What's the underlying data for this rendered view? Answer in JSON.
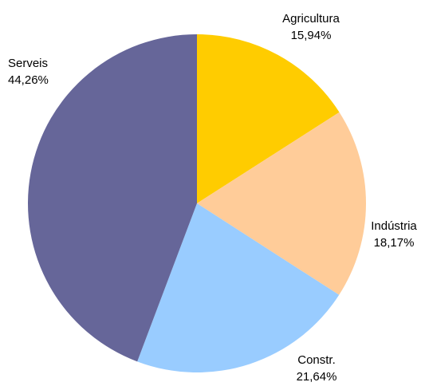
{
  "chart_data": {
    "type": "pie",
    "title": "",
    "start": "top, clockwise",
    "slices": [
      {
        "label": "Agricultura",
        "value": 15.94,
        "value_label": "15,94%",
        "color": "#FFCC00"
      },
      {
        "label": "Indústria",
        "value": 18.17,
        "value_label": "18,17%",
        "color": "#FFCC99"
      },
      {
        "label": "Constr.",
        "value": 21.64,
        "value_label": "21,64%",
        "color": "#99CCFF"
      },
      {
        "label": "Serveis",
        "value": 44.26,
        "value_label": "44,26%",
        "color": "#666699"
      }
    ]
  }
}
